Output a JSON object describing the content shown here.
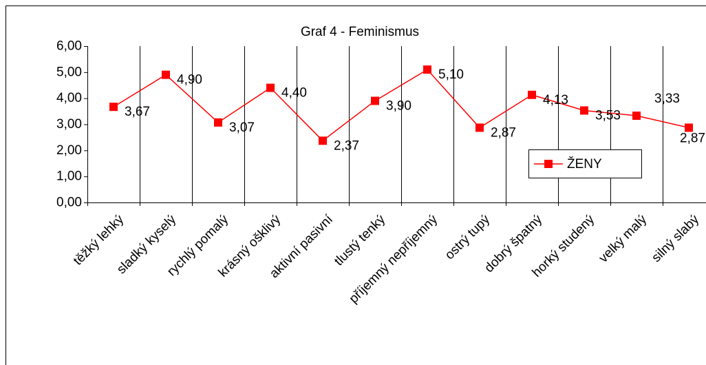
{
  "chart_data": {
    "type": "line",
    "title": "Graf 4 - Feminismus",
    "categories": [
      "těžký lehký",
      "sladký kyselý",
      "rychlý pomalý",
      "krásný ošklivý",
      "aktivní pasivní",
      "tlustý tenký",
      "příjemný nepříjemný",
      "ostrý tupý",
      "dobrý špatný",
      "horký studený",
      "velký malý",
      "silný slabý"
    ],
    "series": [
      {
        "name": "ŽENY",
        "color": "#ff0000",
        "values": [
          3.67,
          4.9,
          3.07,
          4.4,
          2.37,
          3.9,
          5.1,
          2.87,
          4.13,
          3.53,
          3.33,
          2.87
        ],
        "value_labels": [
          "3,67",
          "4,90",
          "3,07",
          "4,40",
          "2,37",
          "3,90",
          "5,10",
          "2,87",
          "4,13",
          "3,53",
          "3,33",
          "2,87"
        ]
      }
    ],
    "ylim": [
      0,
      6
    ],
    "yticks": [
      {
        "value": 0,
        "label": "0,00"
      },
      {
        "value": 1,
        "label": "1,00"
      },
      {
        "value": 2,
        "label": "2,00"
      },
      {
        "value": 3,
        "label": "3,00"
      },
      {
        "value": 4,
        "label": "4,00"
      },
      {
        "value": 5,
        "label": "5,00"
      },
      {
        "value": 6,
        "label": "6,00"
      }
    ],
    "grid": true,
    "legend": "right"
  }
}
